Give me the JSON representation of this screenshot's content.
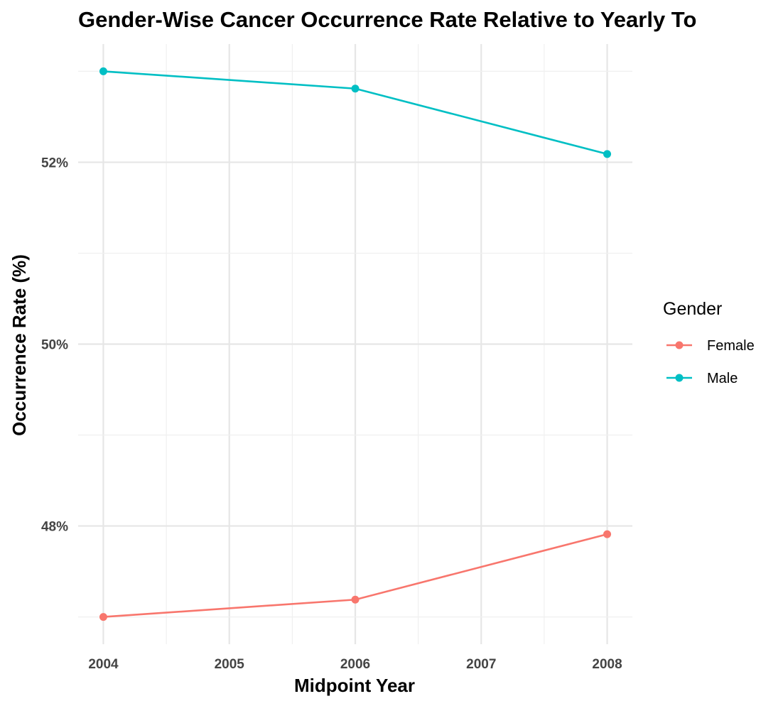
{
  "chart_data": {
    "type": "line",
    "title": "Gender-Wise Cancer Occurrence Rate Relative to Yearly To",
    "xlabel": "Midpoint Year",
    "ylabel": "Occurrence Rate (%)",
    "x_ticks": [
      "2004",
      "2005",
      "2006",
      "2007",
      "2008"
    ],
    "y_ticks": [
      "48%",
      "50%",
      "52%"
    ],
    "xlim": [
      2003.8,
      2008.2
    ],
    "ylim": [
      46.7,
      53.3
    ],
    "grid": true,
    "legend": {
      "title": "Gender",
      "position": "right"
    },
    "series": [
      {
        "name": "Female",
        "color": "#F8766D",
        "x": [
          2004,
          2006,
          2008
        ],
        "y": [
          47.0,
          47.19,
          47.91
        ]
      },
      {
        "name": "Male",
        "color": "#00BFC4",
        "x": [
          2004,
          2006,
          2008
        ],
        "y": [
          53.0,
          52.81,
          52.09
        ]
      }
    ]
  }
}
